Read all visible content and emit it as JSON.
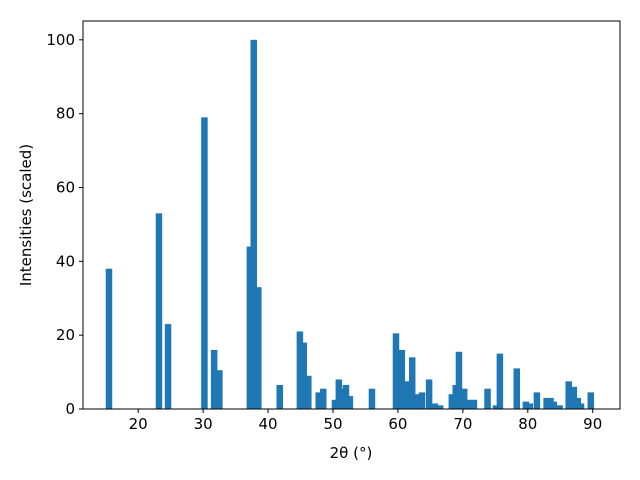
{
  "chart_data": {
    "type": "bar",
    "xlabel": "2θ (°)",
    "ylabel": "Intensities (scaled)",
    "color": "#1f77b4",
    "grid": false,
    "x": [
      15.5,
      23.2,
      24.6,
      30.2,
      31.7,
      32.5,
      37.2,
      37.8,
      38.5,
      41.8,
      44.9,
      45.5,
      46.2,
      47.8,
      48.5,
      50.3,
      50.9,
      51.5,
      52.0,
      52.6,
      56.0,
      59.7,
      60.6,
      61.5,
      62.2,
      63.1,
      63.7,
      64.8,
      65.7,
      66.5,
      68.3,
      68.9,
      69.4,
      70.2,
      70.8,
      71.7,
      73.8,
      75.1,
      75.7,
      78.3,
      79.7,
      80.3,
      81.4,
      82.9,
      83.5,
      84.0,
      84.9,
      86.3,
      87.1,
      87.7,
      88.2,
      89.7
    ],
    "values": [
      38,
      53,
      23,
      79,
      16,
      10.5,
      44,
      100,
      33,
      6.5,
      21,
      18,
      9,
      4.5,
      5.5,
      2.5,
      8,
      5.5,
      6.5,
      3.5,
      5.5,
      20.5,
      16,
      7.5,
      14,
      4,
      4.5,
      8,
      1.5,
      1,
      4,
      6.5,
      15.5,
      5.5,
      2.5,
      2.5,
      5.5,
      1,
      15,
      11,
      2,
      1.5,
      4.5,
      3,
      3,
      2,
      1,
      7.5,
      6,
      3,
      1.5,
      4.5
    ],
    "xlim": [
      11.5,
      94.2
    ],
    "ylim": [
      0,
      105.1
    ],
    "xticks": [
      20,
      30,
      40,
      50,
      60,
      70,
      80,
      90
    ],
    "yticks": [
      0,
      20,
      40,
      60,
      80,
      100
    ]
  }
}
